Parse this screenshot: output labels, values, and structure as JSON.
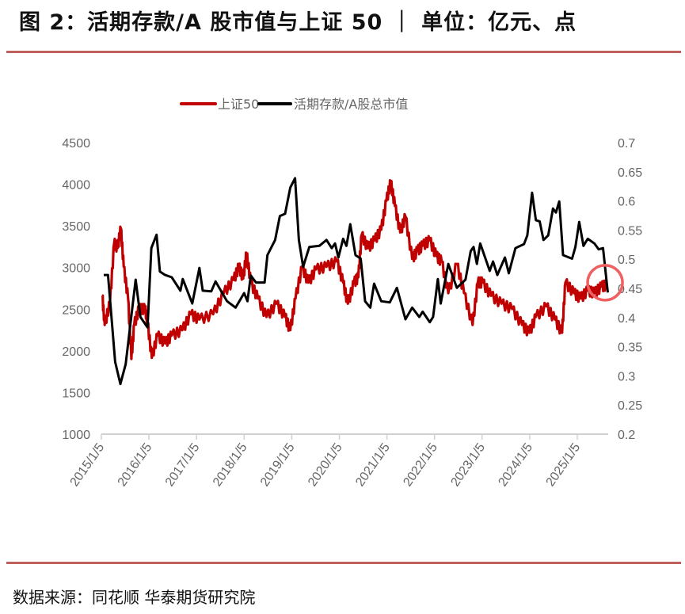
{
  "title": "图 2：活期存款/A 股市值与上证 50 ｜ 单位：亿元、点",
  "source": "数据来源：同花顺 华泰期货研究院",
  "colors": {
    "red_series": "#c00000",
    "black_series": "#000000",
    "rule": "#c0605d",
    "annotation_circle": "#f06060",
    "axis": "#d0d0d0"
  },
  "chart_data": {
    "type": "line",
    "title": "活期存款/A股市值与上证50",
    "legend_position": "top-center",
    "grid": false,
    "x_tick_labels": [
      "2015/1/5",
      "2016/1/5",
      "2017/1/5",
      "2018/1/5",
      "2019/1/5",
      "2020/1/5",
      "2021/1/5",
      "2022/1/5",
      "2023/1/5",
      "2024/1/5",
      "2025/1/5"
    ],
    "x_range": [
      2015.0,
      2025.65
    ],
    "y_left": {
      "ticks": [
        "1000",
        "1500",
        "2000",
        "2500",
        "3000",
        "3500",
        "4000",
        "4500"
      ],
      "range": [
        1000,
        4500
      ]
    },
    "y_right": {
      "ticks": [
        "0.2",
        "0.25",
        "0.3",
        "0.35",
        "0.4",
        "0.45",
        "0.5",
        "0.55",
        "0.6",
        "0.65",
        "0.7"
      ],
      "range": [
        0.2,
        0.7
      ]
    },
    "series": [
      {
        "name": "上证50",
        "axis": "left",
        "color": "#c00000",
        "x": [
          2015.02,
          2015.07,
          2015.18,
          2015.27,
          2015.34,
          2015.41,
          2015.47,
          2015.56,
          2015.63,
          2015.69,
          2015.79,
          2015.92,
          2015.97,
          2016.06,
          2016.18,
          2016.34,
          2016.48,
          2016.7,
          2016.88,
          2017.06,
          2017.35,
          2017.57,
          2017.78,
          2017.89,
          2017.98,
          2018.05,
          2018.14,
          2018.29,
          2018.47,
          2018.68,
          2018.86,
          2018.97,
          2019.08,
          2019.22,
          2019.35,
          2019.51,
          2019.73,
          2019.95,
          2020.08,
          2020.18,
          2020.31,
          2020.4,
          2020.47,
          2020.6,
          2020.74,
          2020.88,
          2020.99,
          2021.08,
          2021.17,
          2021.28,
          2021.39,
          2021.53,
          2021.64,
          2021.75,
          2021.9,
          2022.04,
          2022.15,
          2022.29,
          2022.47,
          2022.62,
          2022.8,
          2022.91,
          2023.01,
          2023.19,
          2023.41,
          2023.63,
          2023.84,
          2023.99,
          2024.13,
          2024.35,
          2024.53,
          2024.68,
          2024.75,
          2024.93,
          2025.07,
          2025.22,
          2025.36,
          2025.51,
          2025.61
        ],
        "values": [
          2662,
          2312,
          2569,
          3295,
          3232,
          3470,
          3010,
          2629,
          1903,
          2312,
          2503,
          2503,
          2344,
          1916,
          2186,
          2091,
          2186,
          2249,
          2440,
          2376,
          2440,
          2693,
          2852,
          3010,
          2868,
          3169,
          2820,
          2629,
          2408,
          2566,
          2408,
          2249,
          2629,
          3010,
          2820,
          2978,
          3010,
          3073,
          2820,
          2566,
          2820,
          2883,
          3391,
          3232,
          3327,
          3454,
          3803,
          4024,
          3739,
          3422,
          3613,
          3105,
          3200,
          3264,
          3327,
          3137,
          3073,
          2693,
          3042,
          2693,
          2312,
          2820,
          2820,
          2662,
          2566,
          2503,
          2312,
          2217,
          2408,
          2535,
          2376,
          2217,
          2820,
          2693,
          2629,
          2725,
          2693,
          2772,
          2788
        ]
      },
      {
        "name": "活期存款/A股总市值",
        "axis": "right",
        "color": "#000000",
        "x": [
          2015.05,
          2015.14,
          2015.29,
          2015.4,
          2015.51,
          2015.72,
          2015.82,
          2015.97,
          2016.05,
          2016.16,
          2016.23,
          2016.34,
          2016.48,
          2016.66,
          2016.71,
          2016.91,
          2017.06,
          2017.13,
          2017.31,
          2017.4,
          2017.64,
          2017.82,
          2018.0,
          2018.07,
          2018.14,
          2018.25,
          2018.43,
          2018.49,
          2018.65,
          2018.75,
          2018.86,
          2018.97,
          2019.07,
          2019.15,
          2019.24,
          2019.37,
          2019.58,
          2019.73,
          2019.84,
          2019.91,
          2019.98,
          2020.08,
          2020.15,
          2020.23,
          2020.34,
          2020.45,
          2020.54,
          2020.65,
          2020.73,
          2020.88,
          2021.06,
          2021.21,
          2021.39,
          2021.53,
          2021.68,
          2021.75,
          2021.9,
          2021.97,
          2022.07,
          2022.13,
          2022.29,
          2022.47,
          2022.65,
          2022.76,
          2022.82,
          2022.89,
          2022.96,
          2023.16,
          2023.23,
          2023.32,
          2023.48,
          2023.56,
          2023.7,
          2023.88,
          2023.95,
          2024.05,
          2024.13,
          2024.21,
          2024.29,
          2024.39,
          2024.49,
          2024.55,
          2024.62,
          2024.7,
          2024.89,
          2024.96,
          2025.04,
          2025.13,
          2025.22,
          2025.36,
          2025.45,
          2025.54,
          2025.64
        ],
        "values": [
          0.473,
          0.473,
          0.324,
          0.286,
          0.32,
          0.465,
          0.401,
          0.383,
          0.519,
          0.542,
          0.479,
          0.473,
          0.469,
          0.446,
          0.466,
          0.424,
          0.485,
          0.446,
          0.445,
          0.462,
          0.428,
          0.417,
          0.442,
          0.428,
          0.472,
          0.46,
          0.46,
          0.507,
          0.533,
          0.574,
          0.578,
          0.623,
          0.639,
          0.533,
          0.487,
          0.521,
          0.523,
          0.533,
          0.519,
          0.527,
          0.503,
          0.535,
          0.523,
          0.56,
          0.507,
          0.501,
          0.428,
          0.417,
          0.458,
          0.428,
          0.426,
          0.451,
          0.397,
          0.417,
          0.401,
          0.41,
          0.392,
          0.401,
          0.466,
          0.424,
          0.492,
          0.451,
          0.465,
          0.514,
          0.521,
          0.492,
          0.527,
          0.48,
          0.496,
          0.473,
          0.503,
          0.476,
          0.519,
          0.526,
          0.541,
          0.614,
          0.567,
          0.565,
          0.533,
          0.541,
          0.587,
          0.58,
          0.599,
          0.507,
          0.501,
          0.521,
          0.564,
          0.523,
          0.535,
          0.527,
          0.517,
          0.519,
          0.443
        ]
      }
    ],
    "annotation": {
      "type": "circle",
      "at_x": 2025.5,
      "at_value_left": 2780
    }
  }
}
